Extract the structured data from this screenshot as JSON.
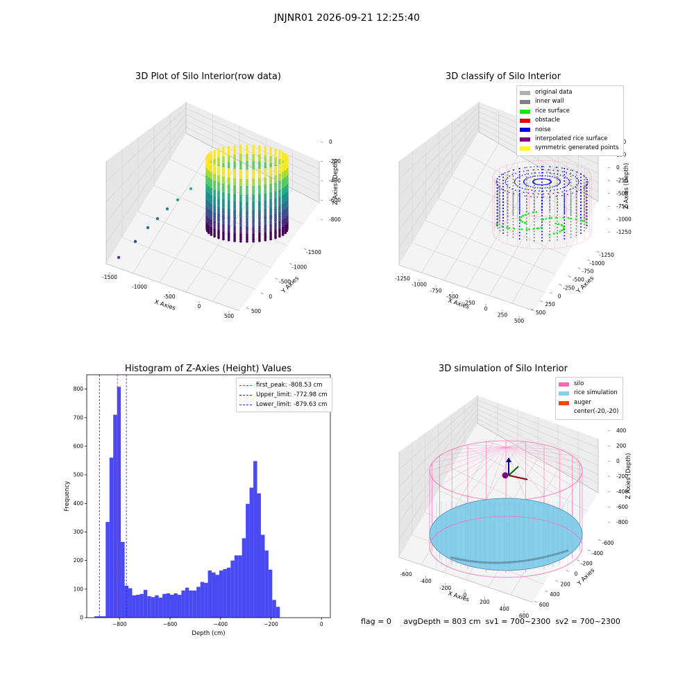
{
  "suptitle": "JNJNR01 2026-09-21 12:25:40",
  "status_line": "flag = 0     avgDepth = 803 cm  sv1 = 700~2300  sv2 = 700~2300",
  "colors": {
    "hist_bar": "#4a4af5",
    "peak_line": "#e03030",
    "limit_line": "#2020d0",
    "pane": "#f2f2f2",
    "grid": "#d8d8d8"
  },
  "chart_data": [
    {
      "type": "scatter",
      "title": "3D Plot of Silo Interior(row data)",
      "xlabel": "X Axies",
      "ylabel": "Y Axies",
      "zlabel": "Z Axies (Depth)",
      "x_ticks": [
        "-1500",
        "-1000",
        "-500",
        "0",
        "500"
      ],
      "y_ticks": [
        "500",
        "0",
        "-500",
        "-1000",
        "-1500"
      ],
      "z_ticks": [
        "0",
        "-200",
        "-400",
        "-600",
        "-800"
      ],
      "xlim": [
        -1600,
        600
      ],
      "ylim": [
        -1600,
        600
      ],
      "zlim": [
        -900,
        0
      ],
      "colormap": "viridis"
    },
    {
      "type": "scatter",
      "title": "3D classify of Silo Interior",
      "xlabel": "X Axies",
      "ylabel": "Y Axies",
      "zlabel": "Z Axies (Depth)",
      "x_ticks": [
        "-1250",
        "-1000",
        "-750",
        "-500",
        "-250",
        "0",
        "250",
        "500"
      ],
      "y_ticks": [
        "500",
        "250",
        "0",
        "-250",
        "-500",
        "-750",
        "-1000",
        "-1250"
      ],
      "z_ticks": [
        "500",
        "250",
        "0",
        "-250",
        "-500",
        "-750",
        "-1000",
        "-1250"
      ],
      "legend": [
        {
          "label": "original data",
          "color": "#b0b0b0"
        },
        {
          "label": "inner wall",
          "color": "#808080"
        },
        {
          "label": "rice surface",
          "color": "#00ee00"
        },
        {
          "label": "obstacle",
          "color": "#ee0000"
        },
        {
          "label": "noise",
          "color": "#0000ee"
        },
        {
          "label": "interpolated rice surface",
          "color": "#800080"
        },
        {
          "label": "symmetric generated points",
          "color": "#ffff00"
        }
      ]
    },
    {
      "type": "bar",
      "title": "Histogram of Z-Axies (Height) Values",
      "xlabel": "Depth (cm)",
      "ylabel": "Frequency",
      "xlim": [
        -930,
        35
      ],
      "ylim": [
        0,
        850
      ],
      "x_ticks": [
        -800,
        -600,
        -400,
        -200,
        0
      ],
      "y_ticks": [
        0,
        100,
        200,
        300,
        400,
        500,
        600,
        700,
        800
      ],
      "bin_start": -900,
      "bin_width": 15,
      "values": [
        5,
        5,
        5,
        335,
        560,
        710,
        808,
        265,
        112,
        103,
        78,
        80,
        83,
        97,
        75,
        72,
        78,
        70,
        83,
        85,
        80,
        85,
        80,
        95,
        105,
        95,
        95,
        108,
        125,
        122,
        165,
        158,
        150,
        165,
        170,
        175,
        200,
        218,
        218,
        278,
        398,
        455,
        548,
        435,
        290,
        235,
        168,
        62,
        38
      ],
      "vlines": [
        {
          "label": "first_peak: -808.53 cm",
          "x": -808.53,
          "style": "peak"
        },
        {
          "label": "Upper_limit: -772.98 cm",
          "x": -772.98,
          "style": "limit"
        },
        {
          "label": "Lower_limit: -879.63 cm",
          "x": -879.63,
          "style": "limit"
        }
      ]
    },
    {
      "type": "surface",
      "title": "3D simulation of Silo Interior",
      "xlabel": "X Axies",
      "ylabel": "Y Axies",
      "zlabel": "Z Axies (Depth)",
      "x_ticks": [
        "-600",
        "-400",
        "-200",
        "0",
        "200",
        "400",
        "600"
      ],
      "y_ticks": [
        "600",
        "400",
        "200",
        "0",
        "-200",
        "-400",
        "-600"
      ],
      "z_ticks": [
        "400",
        "200",
        "0",
        "-200",
        "-400",
        "-600",
        "-800"
      ],
      "legend": [
        {
          "label": "silo",
          "color": "#ff69b4"
        },
        {
          "label": "rice simulation",
          "color": "#87ceeb"
        },
        {
          "label": "auger",
          "color": "#ff4500"
        },
        {
          "label": "center(-20,-20)",
          "color": ""
        }
      ]
    }
  ]
}
